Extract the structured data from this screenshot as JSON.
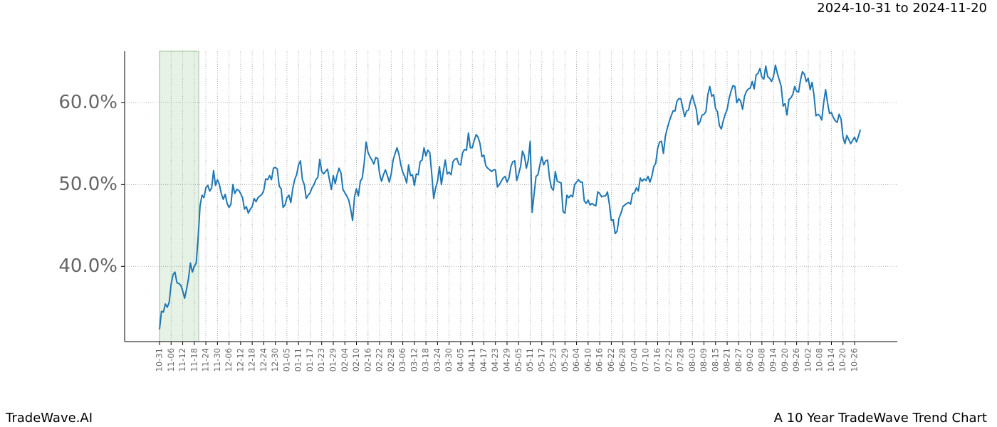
{
  "chart_data": {
    "type": "line",
    "date_range": "2024-10-31 to 2024-11-20",
    "brand": "TradeWave.AI",
    "caption": "A 10 Year TradeWave Trend Chart",
    "color": "#1f77b4",
    "highlight_color": "#e6f2e6",
    "grid": true,
    "ylim": [
      30.8,
      66.3
    ],
    "yticks": [
      {
        "value": 40,
        "label": "40.0%"
      },
      {
        "value": 50,
        "label": "50.0%"
      },
      {
        "value": 60,
        "label": "60.0%"
      }
    ],
    "categories": [
      "10-31",
      null,
      null,
      null,
      null,
      null,
      "11-06",
      null,
      null,
      null,
      null,
      null,
      "11-12",
      null,
      null,
      null,
      null,
      null,
      "11-18",
      null,
      null,
      null,
      null,
      null,
      "11-24",
      null,
      null,
      null,
      null,
      null,
      "11-30",
      null,
      null,
      null,
      null,
      null,
      "12-06",
      null,
      null,
      null,
      null,
      null,
      "12-12",
      null,
      null,
      null,
      null,
      null,
      "12-18",
      null,
      null,
      null,
      null,
      null,
      "12-24",
      null,
      null,
      null,
      null,
      null,
      "12-30",
      null,
      null,
      null,
      null,
      null,
      "01-05",
      null,
      null,
      null,
      null,
      null,
      "01-11",
      null,
      null,
      null,
      null,
      null,
      "01-17",
      null,
      null,
      null,
      null,
      null,
      "01-23",
      null,
      null,
      null,
      null,
      null,
      "01-29",
      null,
      null,
      null,
      null,
      null,
      "02-04",
      null,
      null,
      null,
      null,
      null,
      "02-10",
      null,
      null,
      null,
      null,
      null,
      "02-16",
      null,
      null,
      null,
      null,
      null,
      "02-22",
      null,
      null,
      null,
      null,
      null,
      "02-28",
      null,
      null,
      null,
      null,
      null,
      "03-06",
      null,
      null,
      null,
      null,
      null,
      "03-12",
      null,
      null,
      null,
      null,
      null,
      "03-18",
      null,
      null,
      null,
      null,
      null,
      "03-24",
      null,
      null,
      null,
      null,
      null,
      "03-30",
      null,
      null,
      null,
      null,
      null,
      "04-05",
      null,
      null,
      null,
      null,
      null,
      "04-11",
      null,
      null,
      null,
      null,
      null,
      "04-17",
      null,
      null,
      null,
      null,
      null,
      "04-23",
      null,
      null,
      null,
      null,
      null,
      "04-29",
      null,
      null,
      null,
      null,
      null,
      "05-05",
      null,
      null,
      null,
      null,
      null,
      "05-11",
      null,
      null,
      null,
      null,
      null,
      "05-17",
      null,
      null,
      null,
      null,
      null,
      "05-23",
      null,
      null,
      null,
      null,
      null,
      "05-29",
      null,
      null,
      null,
      null,
      null,
      "06-04",
      null,
      null,
      null,
      null,
      null,
      "06-10",
      null,
      null,
      null,
      null,
      null,
      "06-16",
      null,
      null,
      null,
      null,
      null,
      "06-22",
      null,
      null,
      null,
      null,
      null,
      "06-28",
      null,
      null,
      null,
      null,
      null,
      "07-04",
      null,
      null,
      null,
      null,
      null,
      "07-10",
      null,
      null,
      null,
      null,
      null,
      "07-16",
      null,
      null,
      null,
      null,
      null,
      "07-22",
      null,
      null,
      null,
      null,
      null,
      "07-28",
      null,
      null,
      null,
      null,
      null,
      "08-03",
      null,
      null,
      null,
      null,
      null,
      "08-09",
      null,
      null,
      null,
      null,
      null,
      "08-15",
      null,
      null,
      null,
      null,
      null,
      "08-21",
      null,
      null,
      null,
      null,
      null,
      "08-27",
      null,
      null,
      null,
      null,
      null,
      "09-02",
      null,
      null,
      null,
      null,
      null,
      "09-08",
      null,
      null,
      null,
      null,
      null,
      "09-14",
      null,
      null,
      null,
      null,
      null,
      "09-20",
      null,
      null,
      null,
      null,
      null,
      "09-26",
      null,
      null,
      null,
      null,
      null,
      "10-02",
      null,
      null,
      null,
      null,
      null,
      "10-08",
      null,
      null,
      null,
      null,
      null,
      "10-14",
      null,
      null,
      null,
      null,
      null,
      "10-20",
      null,
      null,
      null,
      null,
      null,
      "10-26",
      null,
      null,
      null
    ],
    "values": [
      32.3,
      34.5,
      34.4,
      35.4,
      35.0,
      35.6,
      37.8,
      39.0,
      39.3,
      38.0,
      37.9,
      37.7,
      37.0,
      36.1,
      37.2,
      38.5,
      40.4,
      39.3,
      40.0,
      40.4,
      43.5,
      47.4,
      48.7,
      48.4,
      49.6,
      49.9,
      49.2,
      49.6,
      51.7,
      49.9,
      50.6,
      50.0,
      48.9,
      48.2,
      48.8,
      47.7,
      47.2,
      47.6,
      50.0,
      48.9,
      49.4,
      49.3,
      48.9,
      48.4,
      47.0,
      47.3,
      46.5,
      47.0,
      47.3,
      48.3,
      47.9,
      48.4,
      48.6,
      48.8,
      49.3,
      50.7,
      50.6,
      51.1,
      50.6,
      52.0,
      52.1,
      51.9,
      49.8,
      49.5,
      47.2,
      47.5,
      48.4,
      48.7,
      47.8,
      49.5,
      50.6,
      51.2,
      52.4,
      52.9,
      50.6,
      50.0,
      48.3,
      48.7,
      49.0,
      49.6,
      50.0,
      50.6,
      50.9,
      53.1,
      51.6,
      51.3,
      51.6,
      51.9,
      50.6,
      49.4,
      51.1,
      50.1,
      51.2,
      52.0,
      51.4,
      49.4,
      49.0,
      48.6,
      48.1,
      47.0,
      45.6,
      48.5,
      49.5,
      48.6,
      50.4,
      50.8,
      52.6,
      55.2,
      53.9,
      53.4,
      53.0,
      52.5,
      53.3,
      53.2,
      51.3,
      50.4,
      51.2,
      51.8,
      51.1,
      50.3,
      51.3,
      53.0,
      53.8,
      54.5,
      53.7,
      52.4,
      51.5,
      51.0,
      50.2,
      52.4,
      51.1,
      51.2,
      49.9,
      51.3,
      51.2,
      52.8,
      53.0,
      54.5,
      53.5,
      54.2,
      53.9,
      51.3,
      48.3,
      49.6,
      50.4,
      52.2,
      50.0,
      51.6,
      53.0,
      51.3,
      51.5,
      51.2,
      52.8,
      53.1,
      53.2,
      52.5,
      52.4,
      53.9,
      54.3,
      54.2,
      56.3,
      54.5,
      54.5,
      55.4,
      56.1,
      55.8,
      55.0,
      53.4,
      53.6,
      52.3,
      52.0,
      51.8,
      51.6,
      51.8,
      51.8,
      49.7,
      50.0,
      50.4,
      50.8,
      51.0,
      50.3,
      50.8,
      52.2,
      52.8,
      52.9,
      50.5,
      51.3,
      52.2,
      54.1,
      53.5,
      52.0,
      53.0,
      55.3,
      46.6,
      48.8,
      51.0,
      51.2,
      52.4,
      53.4,
      52.4,
      52.9,
      53.0,
      50.8,
      49.6,
      49.3,
      51.6,
      50.4,
      50.3,
      50.2,
      46.7,
      46.5,
      48.7,
      48.4,
      48.7,
      48.5,
      50.0,
      50.3,
      50.6,
      50.3,
      50.3,
      48.0,
      47.7,
      48.1,
      47.5,
      47.7,
      47.5,
      47.4,
      49.1,
      48.9,
      48.5,
      48.6,
      48.6,
      49.1,
      47.6,
      45.6,
      45.7,
      44.0,
      44.3,
      45.9,
      46.5,
      47.3,
      47.5,
      47.7,
      47.8,
      47.6,
      48.9,
      49.0,
      49.6,
      49.2,
      50.8,
      50.4,
      50.7,
      50.5,
      51.0,
      50.3,
      51.0,
      52.2,
      52.6,
      54.4,
      55.2,
      55.3,
      53.8,
      55.9,
      56.9,
      57.7,
      58.4,
      59.0,
      59.0,
      60.2,
      60.5,
      60.5,
      59.4,
      58.3,
      59.0,
      59.1,
      60.2,
      60.9,
      60.0,
      59.2,
      57.3,
      57.7,
      58.5,
      58.6,
      58.9,
      61.0,
      62.0,
      60.8,
      61.0,
      59.3,
      58.9,
      57.2,
      56.8,
      57.8,
      58.6,
      59.2,
      60.5,
      61.4,
      62.1,
      62.0,
      60.0,
      60.5,
      60.2,
      59.2,
      60.8,
      61.4,
      61.7,
      61.8,
      62.6,
      61.7,
      63.4,
      63.6,
      64.2,
      63.1,
      62.9,
      64.5,
      63.2,
      63.0,
      62.6,
      63.2,
      64.6,
      63.6,
      62.8,
      62.0,
      59.6,
      59.9,
      58.5,
      60.4,
      60.6,
      61.0,
      62.0,
      61.4,
      61.3,
      62.8,
      63.8,
      63.5,
      62.6,
      63.0,
      61.6,
      62.5,
      60.9,
      58.4,
      58.6,
      58.4,
      57.9,
      60.0,
      61.6,
      60.0,
      58.7,
      58.8,
      58.2,
      57.8,
      57.6,
      58.6,
      58.0,
      55.8,
      55.0,
      56.0,
      55.5,
      55.0,
      55.4,
      55.8,
      55.2,
      55.9,
      56.7
    ]
  }
}
